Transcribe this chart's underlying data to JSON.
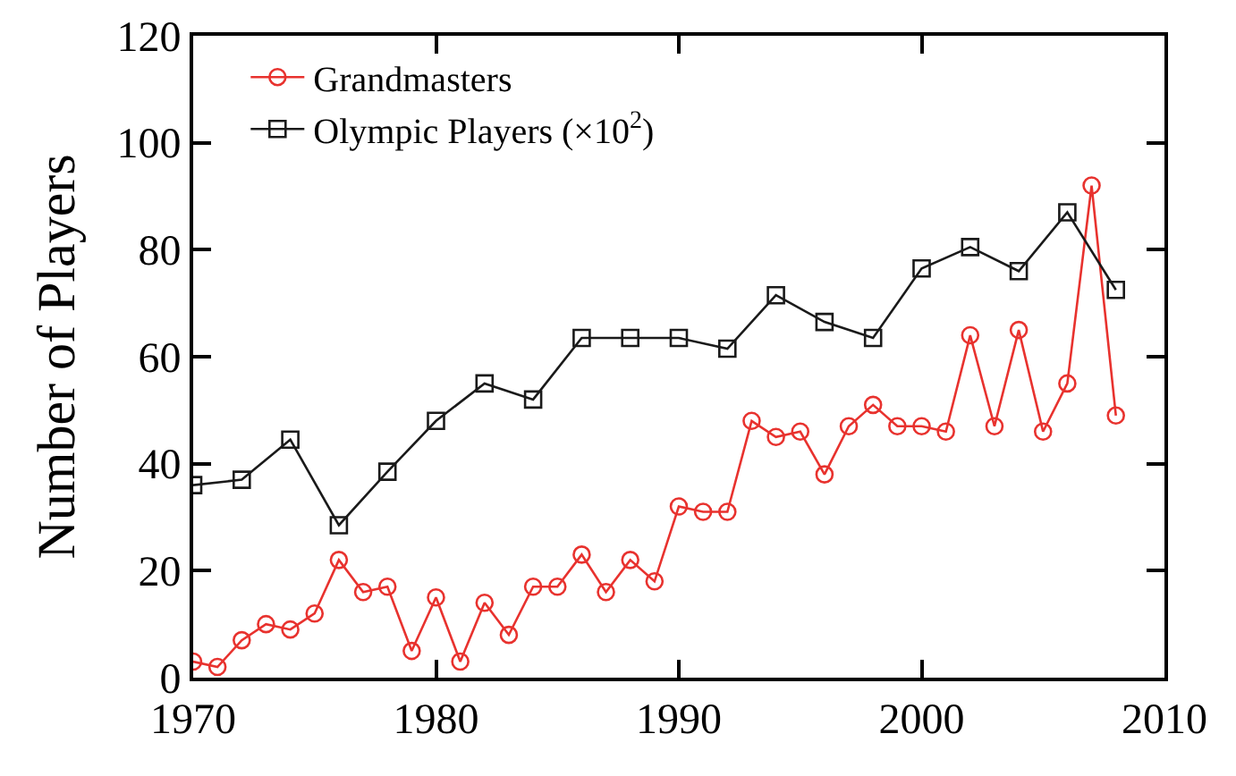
{
  "chart_data": {
    "type": "line",
    "ylabel": "Number of Players",
    "xlim": [
      1970,
      2010
    ],
    "xticks": [
      1970,
      1980,
      1990,
      2000,
      2010
    ],
    "ylim": [
      0,
      120
    ],
    "yticks": [
      0,
      20,
      40,
      60,
      80,
      100,
      120
    ],
    "grid": false,
    "legend": "top left",
    "series": [
      {
        "name": "Grandmasters",
        "color": "#e8322e",
        "marker": "circle",
        "x": [
          1970,
          1971,
          1972,
          1973,
          1974,
          1975,
          1976,
          1977,
          1978,
          1979,
          1980,
          1981,
          1982,
          1983,
          1984,
          1985,
          1986,
          1987,
          1988,
          1989,
          1990,
          1991,
          1992,
          1993,
          1994,
          1995,
          1996,
          1997,
          1998,
          1999,
          2000,
          2001,
          2002,
          2003,
          2004,
          2005,
          2006,
          2007,
          2008
        ],
        "values": [
          3,
          2,
          7,
          10,
          9,
          12,
          22,
          16,
          17,
          5,
          15,
          3,
          14,
          8,
          17,
          17,
          23,
          16,
          22,
          18,
          32,
          31,
          31,
          48,
          45,
          46,
          38,
          47,
          51,
          47,
          47,
          46,
          64,
          47,
          65,
          46,
          55,
          92,
          49
        ]
      },
      {
        "name": "Olympic Players (×10$^{2}$)",
        "color": "#1a1a1a",
        "marker": "square",
        "x": [
          1970,
          1972,
          1974,
          1976,
          1978,
          1980,
          1982,
          1984,
          1986,
          1988,
          1990,
          1992,
          1994,
          1996,
          1998,
          2000,
          2002,
          2004,
          2006,
          2008
        ],
        "values": [
          36,
          37,
          44.5,
          28.5,
          38.5,
          48,
          55,
          52,
          63.5,
          63.5,
          63.5,
          61.5,
          71.5,
          66.5,
          63.5,
          76.5,
          80.5,
          76,
          87,
          72.5
        ]
      }
    ]
  }
}
